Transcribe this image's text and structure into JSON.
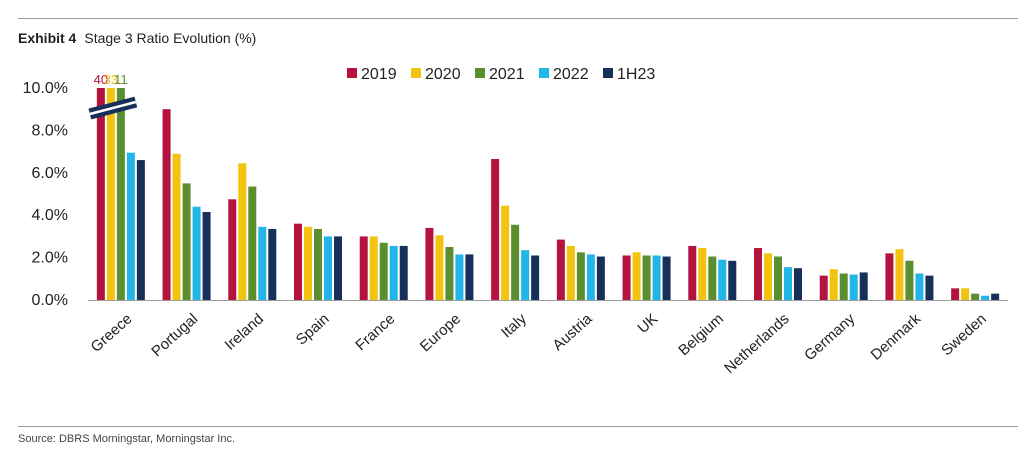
{
  "header": {
    "exhibit_label": "Exhibit 4",
    "title": "Stage 3 Ratio Evolution (%)"
  },
  "footer": {
    "source": "Source: DBRS Morningstar, Morningstar Inc."
  },
  "chart_data": {
    "type": "bar",
    "title": "Stage 3 Ratio Evolution (%)",
    "xlabel": "",
    "ylabel": "",
    "ylim": [
      0,
      10
    ],
    "yticks": [
      "0.0%",
      "2.0%",
      "4.0%",
      "6.0%",
      "8.0%",
      "10.0%"
    ],
    "legend_position": "top-center",
    "axis_break": "Greece bars above 10.0% are truncated",
    "categories": [
      "Greece",
      "Portugal",
      "Ireland",
      "Spain",
      "France",
      "Europe",
      "Italy",
      "Austria",
      "UK",
      "Belgium",
      "Netherlands",
      "Germany",
      "Denmark",
      "Sweden"
    ],
    "series": [
      {
        "name": "2019",
        "color": "#b5123e",
        "values": [
          40,
          9.0,
          4.75,
          3.6,
          3.0,
          3.4,
          6.65,
          2.85,
          2.1,
          2.55,
          2.45,
          1.15,
          2.2,
          0.55
        ]
      },
      {
        "name": "2020",
        "color": "#f2c40f",
        "values": [
          33,
          6.9,
          6.45,
          3.45,
          3.0,
          3.05,
          4.45,
          2.55,
          2.25,
          2.45,
          2.2,
          1.45,
          2.4,
          0.55
        ]
      },
      {
        "name": "2021",
        "color": "#5b8e2f",
        "values": [
          11,
          5.5,
          5.35,
          3.35,
          2.7,
          2.5,
          3.55,
          2.25,
          2.1,
          2.05,
          2.05,
          1.25,
          1.85,
          0.3
        ]
      },
      {
        "name": "2022",
        "color": "#21b5e8",
        "values": [
          6.95,
          4.4,
          3.45,
          3.0,
          2.55,
          2.15,
          2.35,
          2.15,
          2.1,
          1.9,
          1.55,
          1.2,
          1.25,
          0.2
        ]
      },
      {
        "name": "1H23",
        "color": "#17305a",
        "values": [
          6.6,
          4.15,
          3.35,
          3.0,
          2.55,
          2.15,
          2.1,
          2.05,
          2.05,
          1.85,
          1.5,
          1.3,
          1.15,
          0.3
        ]
      }
    ],
    "overflow_labels": {
      "category": "Greece",
      "labels": [
        "40",
        "33",
        "11"
      ]
    }
  }
}
